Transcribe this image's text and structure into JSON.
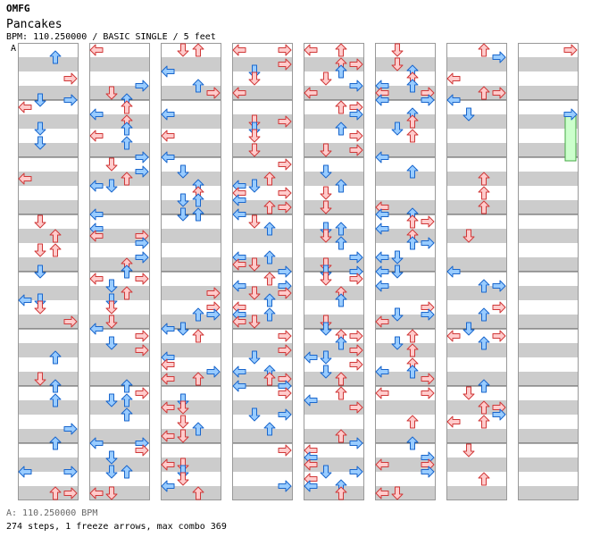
{
  "header": {
    "title": "OMFG",
    "song": "Pancakes",
    "info": "BPM: 110.250000 / BASIC SINGLE / 5 feet"
  },
  "chart": {
    "bpm_marker": "A",
    "colors": {
      "stripe": "#cccccc",
      "border": "#999999",
      "pink_fill": "#ffcccc",
      "pink_stroke": "#d03838",
      "blue_fill": "#99ccff",
      "blue_stroke": "#1966cc",
      "freeze_fill": "#ccffcc",
      "freeze_stroke": "#44aa44"
    },
    "columns": 8,
    "measures_per_column": 8,
    "lanes": [
      "left",
      "down",
      "up",
      "right"
    ]
  },
  "footer": {
    "bpm_line": "A: 110.250000 BPM",
    "stats": "274 steps, 1 freeze arrows, max combo 369"
  }
}
